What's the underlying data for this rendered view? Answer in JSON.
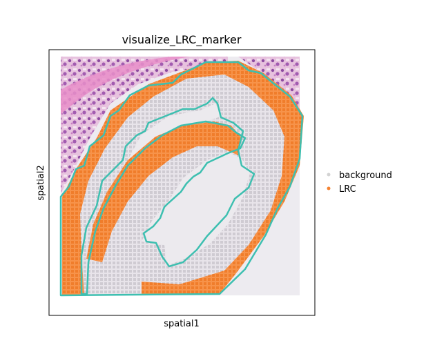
{
  "chart_data": {
    "type": "scatter",
    "title": "visualize_LRC_marker",
    "xlabel": "spatial1",
    "ylabel": "spatial2",
    "xticks": [],
    "yticks": [],
    "grid": false,
    "legend_position": "right",
    "background_image": "H&E tissue section",
    "series": [
      {
        "name": "background",
        "color": "#d3d3d3",
        "marker": "point",
        "region": "tissue interior"
      },
      {
        "name": "LRC",
        "color": "#f58231",
        "marker": "point",
        "region": "outer rim and inner ring"
      }
    ],
    "annotation": {
      "type": "outline",
      "color": "#3dbfb0",
      "description": "boundary polygons"
    }
  }
}
